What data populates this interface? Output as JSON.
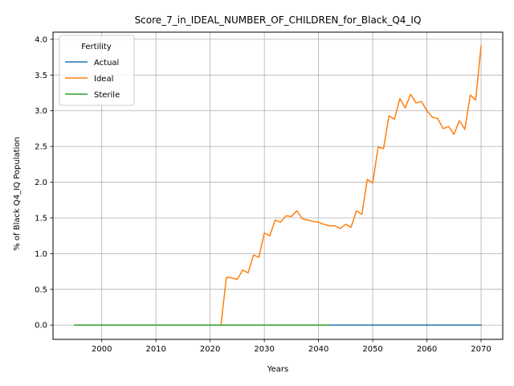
{
  "chart_data": {
    "type": "line",
    "title": "Score_7_in_IDEAL_NUMBER_OF_CHILDREN_for_Black_Q4_IQ",
    "xlabel": "Years",
    "ylabel": "% of Black Q4_IQ Population",
    "xlim": [
      1991,
      2074
    ],
    "ylim": [
      -0.2,
      4.1
    ],
    "xticks": [
      2000,
      2010,
      2020,
      2030,
      2040,
      2050,
      2060,
      2070
    ],
    "xtick_labels": [
      "2000",
      "2010",
      "2020",
      "2030",
      "2040",
      "2050",
      "2060",
      "2070"
    ],
    "yticks": [
      0.0,
      0.5,
      1.0,
      1.5,
      2.0,
      2.5,
      3.0,
      3.5,
      4.0
    ],
    "ytick_labels": [
      "0.0",
      "0.5",
      "1.0",
      "1.5",
      "2.0",
      "2.5",
      "3.0",
      "3.5",
      "4.0"
    ],
    "grid": true,
    "legend": {
      "title": "Fertility",
      "placement": "top-left"
    },
    "series": [
      {
        "name": "Actual",
        "color": "#1f77b4",
        "x": [
          1995,
          2000,
          2010,
          2020,
          2030,
          2040,
          2050,
          2060,
          2070
        ],
        "y": [
          0,
          0,
          0,
          0,
          0,
          0,
          0,
          0,
          0
        ]
      },
      {
        "name": "Ideal",
        "color": "#ff7f0e",
        "x": [
          1995,
          2022,
          2023,
          2024,
          2025,
          2026,
          2027,
          2028,
          2029,
          2030,
          2031,
          2032,
          2033,
          2034,
          2035,
          2036,
          2037,
          2038,
          2039,
          2040,
          2041,
          2042,
          2043,
          2044,
          2045,
          2046,
          2047,
          2048,
          2049,
          2050,
          2051,
          2052,
          2053,
          2054,
          2055,
          2056,
          2057,
          2058,
          2059,
          2060,
          2061,
          2062,
          2063,
          2064,
          2065,
          2066,
          2067,
          2068,
          2069,
          2070
        ],
        "y": [
          0,
          0,
          0.67,
          0.66,
          0.64,
          0.77,
          0.73,
          0.98,
          0.95,
          1.29,
          1.25,
          1.47,
          1.44,
          1.53,
          1.52,
          1.6,
          1.49,
          1.47,
          1.45,
          1.44,
          1.41,
          1.39,
          1.39,
          1.35,
          1.41,
          1.37,
          1.6,
          1.55,
          2.04,
          1.99,
          2.49,
          2.47,
          2.93,
          2.88,
          3.17,
          3.04,
          3.23,
          3.11,
          3.13,
          3.0,
          2.91,
          2.89,
          2.75,
          2.78,
          2.67,
          2.86,
          2.74,
          3.22,
          3.15,
          3.91
        ]
      },
      {
        "name": "Sterile",
        "color": "#2ca02c",
        "x": [
          1995,
          2000,
          2010,
          2020,
          2030,
          2042
        ],
        "y": [
          0,
          0,
          0,
          0,
          0,
          0
        ]
      }
    ]
  }
}
